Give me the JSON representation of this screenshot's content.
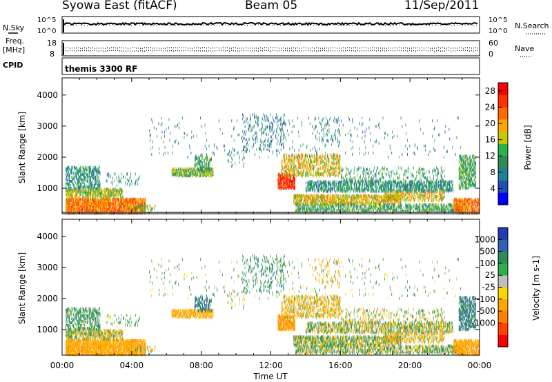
{
  "header": {
    "site": "Syowa East (fitACF)",
    "beam": "Beam 05",
    "date": "11/Sep/2011"
  },
  "top_panels": {
    "nsky_label": "N.Sky",
    "nsearch_label": "N.Search",
    "freq_label_1": "Freq.",
    "freq_label_2": "[MHz]",
    "nave_label": "Nave",
    "cpid_label": "CPID",
    "cpid_value": "themis 3300 RF",
    "noise_ticks": [
      "10^5",
      "10^0"
    ],
    "freq_ticks": [
      "18",
      "8"
    ],
    "nave_ticks": [
      "60",
      "0"
    ]
  },
  "colors": {
    "power": [
      "#0000ff",
      "#1f4fb4",
      "#1e7f96",
      "#2e8b57",
      "#2db04a",
      "#c8c800",
      "#ffa500",
      "#ff6a00",
      "#ff3000",
      "#ff0000"
    ],
    "velocity": [
      "#1f3cb4",
      "#2f62b8",
      "#2e8b57",
      "#2db04a",
      "#bebebe",
      "#ffd700",
      "#ffa500",
      "#ff7f00",
      "#ff4000",
      "#ff0000"
    ]
  },
  "chart_data": [
    {
      "type": "heatmap",
      "name": "power",
      "xlabel": "",
      "ylabel": "Slant Range [km]",
      "ylim": [
        180,
        4550
      ],
      "y_ticks": [
        "1000",
        "2000",
        "3000",
        "4000"
      ],
      "colorbar_label": "Power [dB]",
      "colorbar_ticks": [
        "4",
        "8",
        "12",
        "16",
        "20",
        "24",
        "28"
      ],
      "clim": [
        0,
        30
      ]
    },
    {
      "type": "heatmap",
      "name": "velocity",
      "xlabel": "Time UT",
      "ylabel": "Slant Range [km]",
      "ylim": [
        180,
        4550
      ],
      "y_ticks": [
        "1000",
        "2000",
        "3000",
        "4000"
      ],
      "x_ticks": [
        "00:00",
        "04:00",
        "08:00",
        "12:00",
        "16:00",
        "20:00",
        "00:00"
      ],
      "xlim_hours": [
        0,
        24
      ],
      "colorbar_label": "Velocity [m s-1]",
      "colorbar_ticks": [
        "1000",
        "500",
        "100",
        "25",
        "-25",
        "-100",
        "-500",
        "-1000"
      ]
    }
  ]
}
